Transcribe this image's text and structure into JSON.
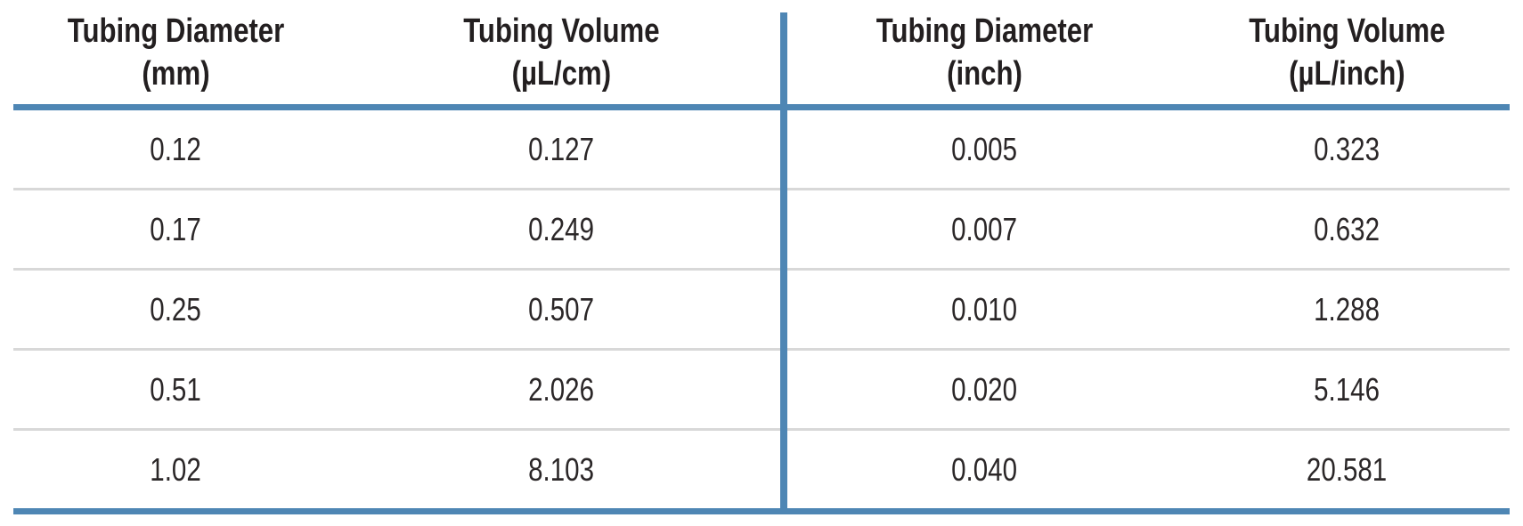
{
  "table": {
    "left": {
      "columns": [
        {
          "title": "Tubing Diameter",
          "unit": "(mm)"
        },
        {
          "title": "Tubing Volume",
          "unit": "(µL/cm)"
        }
      ],
      "rows": [
        [
          "0.12",
          "0.127"
        ],
        [
          "0.17",
          "0.249"
        ],
        [
          "0.25",
          "0.507"
        ],
        [
          "0.51",
          "2.026"
        ],
        [
          "1.02",
          "8.103"
        ]
      ]
    },
    "right": {
      "columns": [
        {
          "title": "Tubing Diameter",
          "unit": "(inch)"
        },
        {
          "title": "Tubing Volume",
          "unit": "(µL/inch)"
        }
      ],
      "rows": [
        [
          "0.005",
          "0.323"
        ],
        [
          "0.007",
          "0.632"
        ],
        [
          "0.010",
          "1.288"
        ],
        [
          "0.020",
          "5.146"
        ],
        [
          "0.040",
          "20.581"
        ]
      ]
    },
    "colors": {
      "rule_blue": "#4e86b4",
      "row_separator_gray": "#d8d8d8",
      "text": "#231f20"
    }
  }
}
